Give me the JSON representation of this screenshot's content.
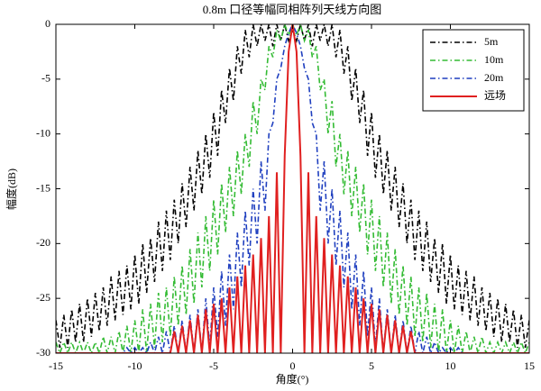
{
  "chart_data": {
    "type": "line",
    "title": "0.8m 口径等幅同相阵列天线方向图",
    "x_label": "角度(°)",
    "y_label": "幅度(dB)",
    "xlim": [
      -15,
      15
    ],
    "xticks": [
      -15,
      -10,
      -5,
      0,
      5,
      10,
      15
    ],
    "ylim": [
      -30,
      0
    ],
    "yticks": [
      0,
      -5,
      -10,
      -15,
      -20,
      -25,
      -30
    ],
    "grid": false,
    "legend": "upper right",
    "x": [
      -15,
      -14.75,
      -14.5,
      -14.25,
      -14,
      -13.75,
      -13.5,
      -13.25,
      -13,
      -12.75,
      -12.5,
      -12.25,
      -12,
      -11.75,
      -11.5,
      -11.25,
      -11,
      -10.75,
      -10.5,
      -10.25,
      -10,
      -9.75,
      -9.5,
      -9.25,
      -9,
      -8.75,
      -8.5,
      -8.25,
      -8,
      -7.75,
      -7.5,
      -7.25,
      -7,
      -6.75,
      -6.5,
      -6.25,
      -6,
      -5.75,
      -5.5,
      -5.25,
      -5,
      -4.75,
      -4.5,
      -4.25,
      -4,
      -3.75,
      -3.5,
      -3.25,
      -3,
      -2.75,
      -2.5,
      -2.25,
      -2,
      -1.75,
      -1.5,
      -1.25,
      -1,
      -0.75,
      -0.5,
      -0.25,
      0,
      0.25,
      0.5,
      0.75,
      1,
      1.25,
      1.5,
      1.75,
      2,
      2.25,
      2.5,
      2.75,
      3,
      3.25,
      3.5,
      3.75,
      4,
      4.25,
      4.5,
      4.75,
      5,
      5.25,
      5.5,
      5.75,
      6,
      6.25,
      6.5,
      6.75,
      7,
      7.25,
      7.5,
      7.75,
      8,
      8.25,
      8.5,
      8.75,
      9,
      9.25,
      9.5,
      9.75,
      10,
      10.25,
      10.5,
      10.75,
      11,
      11.25,
      11.5,
      11.75,
      12,
      12.25,
      12.5,
      12.75,
      13,
      13.25,
      13.5,
      13.75,
      14,
      14.25,
      14.5,
      14.75,
      15
    ],
    "series": [
      {
        "name": "5m",
        "color": "#000000",
        "dash": "dashdot",
        "values": [
          -27,
          -29.5,
          -26.5,
          -29.5,
          -26,
          -29,
          -25.5,
          -29,
          -25,
          -28.5,
          -24.5,
          -28,
          -24,
          -27.5,
          -23,
          -27,
          -22.5,
          -26.5,
          -22,
          -26,
          -21,
          -25.5,
          -20,
          -24.5,
          -19.5,
          -23.5,
          -18,
          -22.5,
          -17,
          -21.5,
          -16,
          -20,
          -14.5,
          -18.5,
          -13,
          -17,
          -11.5,
          -15.5,
          -10,
          -14,
          -8,
          -12,
          -6,
          -9,
          -4,
          -7,
          -2,
          -4.5,
          -0.5,
          -3,
          0,
          -2,
          0,
          -1.5,
          0,
          -2,
          0,
          -1.5,
          0,
          -1.5,
          -0.5,
          -1.5,
          0,
          -1.5,
          0,
          -2,
          0,
          -1.5,
          0,
          -2,
          0,
          -3,
          -0.5,
          -4.5,
          -2,
          -7,
          -4,
          -9,
          -6,
          -12,
          -8,
          -14,
          -10,
          -15.5,
          -11.5,
          -17,
          -13,
          -18.5,
          -14.5,
          -20,
          -16,
          -21.5,
          -17,
          -22.5,
          -18,
          -23.5,
          -19.5,
          -24.5,
          -20,
          -25.5,
          -21,
          -26,
          -22,
          -26.5,
          -22.5,
          -27,
          -23,
          -27.5,
          -24,
          -28,
          -24.5,
          -28.5,
          -25,
          -29,
          -25.5,
          -29,
          -26,
          -29.5,
          -26.5,
          -29.5,
          -27
        ]
      },
      {
        "name": "10m",
        "color": "#33bb33",
        "dash": "dashdot",
        "values": [
          -29,
          -30,
          -29,
          -30,
          -29,
          -30,
          -29,
          -30,
          -29,
          -30,
          -29,
          -30,
          -28.5,
          -30,
          -28.5,
          -30,
          -28,
          -30,
          -27.5,
          -30,
          -27,
          -30,
          -26,
          -30,
          -25.5,
          -29.5,
          -24.5,
          -29,
          -24,
          -28.5,
          -23,
          -27.5,
          -22,
          -26.5,
          -20.5,
          -25.5,
          -19,
          -24,
          -17.5,
          -22.5,
          -16,
          -21,
          -14.5,
          -19,
          -13,
          -17.5,
          -11.5,
          -15.5,
          -10,
          -13,
          -7,
          -10,
          -5,
          -6,
          -2,
          -3,
          -0.5,
          -1.5,
          0,
          -1,
          0,
          -1,
          0,
          -1.5,
          -0.5,
          -3,
          -2,
          -6,
          -5,
          -10,
          -7,
          -13,
          -10,
          -15.5,
          -11.5,
          -17.5,
          -13,
          -19,
          -14.5,
          -21,
          -16,
          -22.5,
          -17.5,
          -24,
          -19,
          -25.5,
          -20.5,
          -26.5,
          -22,
          -27.5,
          -23,
          -28.5,
          -24,
          -29,
          -24.5,
          -29.5,
          -25.5,
          -30,
          -26,
          -30,
          -27,
          -30,
          -27.5,
          -30,
          -28,
          -30,
          -28.5,
          -30,
          -28.5,
          -30,
          -29,
          -30,
          -29,
          -30,
          -29,
          -30,
          -29,
          -30,
          -29,
          -30,
          -29
        ]
      },
      {
        "name": "20m",
        "color": "#1f3fbf",
        "dash": "dashdot",
        "values": [
          -30,
          -30,
          -30,
          -30,
          -30,
          -30,
          -30,
          -30,
          -30,
          -30,
          -30,
          -30,
          -30,
          -30,
          -30,
          -30,
          -30,
          -30,
          -29.5,
          -30,
          -29.5,
          -30,
          -29.5,
          -30,
          -29,
          -30,
          -28.5,
          -30,
          -28,
          -30,
          -27.5,
          -30,
          -27,
          -30,
          -26.5,
          -30,
          -26,
          -30,
          -25,
          -29.5,
          -24,
          -28.5,
          -22.5,
          -27.5,
          -21,
          -26,
          -19,
          -24,
          -17,
          -22,
          -15,
          -20,
          -12.5,
          -17,
          -10,
          -9,
          -5,
          -4,
          -2,
          -0.8,
          0,
          -0.8,
          -2,
          -4,
          -5,
          -9,
          -10,
          -17,
          -12.5,
          -20,
          -15,
          -22,
          -17,
          -24,
          -19,
          -26,
          -21,
          -27.5,
          -22.5,
          -28.5,
          -24,
          -29.5,
          -25,
          -30,
          -26,
          -30,
          -26.5,
          -30,
          -27,
          -30,
          -27.5,
          -30,
          -28,
          -30,
          -28.5,
          -30,
          -29,
          -30,
          -29.5,
          -30,
          -29.5,
          -30,
          -29.5,
          -30,
          -30,
          -30,
          -30,
          -30,
          -30,
          -30,
          -30,
          -30,
          -30,
          -30,
          -30,
          -30,
          -30,
          -30,
          -30,
          -30,
          -30
        ]
      },
      {
        "name": "远场",
        "color": "#e02020",
        "dash": "solid",
        "values": [
          -30,
          -30,
          -30,
          -30,
          -30,
          -30,
          -30,
          -30,
          -30,
          -30,
          -30,
          -30,
          -30,
          -30,
          -30,
          -30,
          -30,
          -30,
          -30,
          -30,
          -30,
          -30,
          -30,
          -30,
          -30,
          -30,
          -30,
          -30,
          -30,
          -30,
          -28,
          -30,
          -27.5,
          -30,
          -27,
          -30,
          -26.5,
          -30,
          -26,
          -30,
          -25.5,
          -30,
          -25,
          -30,
          -24,
          -30,
          -23,
          -30,
          -22,
          -30,
          -21,
          -30,
          -19.5,
          -30,
          -17.5,
          -30,
          -13.5,
          -30,
          -12,
          -2.5,
          0,
          -2.5,
          -12,
          -30,
          -13.5,
          -30,
          -17.5,
          -30,
          -19.5,
          -30,
          -21,
          -30,
          -22,
          -30,
          -23,
          -30,
          -24,
          -30,
          -25,
          -30,
          -25.5,
          -30,
          -26,
          -30,
          -26.5,
          -30,
          -27,
          -30,
          -27.5,
          -30,
          -28,
          -30,
          -30,
          -30,
          -30,
          -30,
          -30,
          -30,
          -30,
          -30,
          -30,
          -30,
          -30,
          -30,
          -30,
          -30,
          -30,
          -30,
          -30,
          -30,
          -30,
          -30,
          -30,
          -30,
          -30,
          -30,
          -30,
          -30,
          -30,
          -30,
          -30
        ]
      }
    ]
  }
}
